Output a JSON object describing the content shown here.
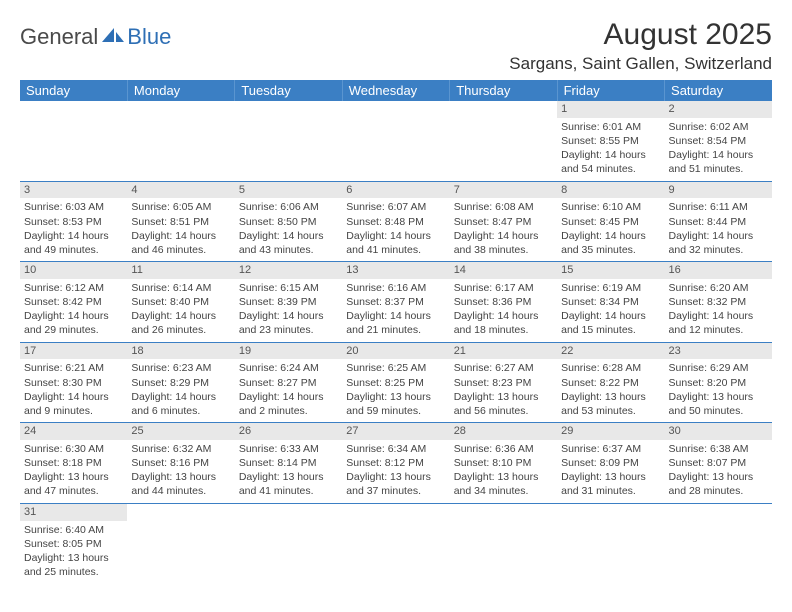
{
  "brand": {
    "part1": "General",
    "part2": "Blue"
  },
  "title": "August 2025",
  "location": "Sargans, Saint Gallen, Switzerland",
  "colors": {
    "header_bg": "#3b7fc4",
    "header_text": "#ffffff",
    "daynum_bg": "#e8e8e8",
    "border": "#3b7fc4",
    "logo_accent": "#2e6fb5"
  },
  "day_headers": [
    "Sunday",
    "Monday",
    "Tuesday",
    "Wednesday",
    "Thursday",
    "Friday",
    "Saturday"
  ],
  "weeks": [
    [
      {
        "empty": true
      },
      {
        "empty": true
      },
      {
        "empty": true
      },
      {
        "empty": true
      },
      {
        "empty": true
      },
      {
        "n": "1",
        "sunrise": "6:01 AM",
        "sunset": "8:55 PM",
        "daylight": "14 hours and 54 minutes."
      },
      {
        "n": "2",
        "sunrise": "6:02 AM",
        "sunset": "8:54 PM",
        "daylight": "14 hours and 51 minutes."
      }
    ],
    [
      {
        "n": "3",
        "sunrise": "6:03 AM",
        "sunset": "8:53 PM",
        "daylight": "14 hours and 49 minutes."
      },
      {
        "n": "4",
        "sunrise": "6:05 AM",
        "sunset": "8:51 PM",
        "daylight": "14 hours and 46 minutes."
      },
      {
        "n": "5",
        "sunrise": "6:06 AM",
        "sunset": "8:50 PM",
        "daylight": "14 hours and 43 minutes."
      },
      {
        "n": "6",
        "sunrise": "6:07 AM",
        "sunset": "8:48 PM",
        "daylight": "14 hours and 41 minutes."
      },
      {
        "n": "7",
        "sunrise": "6:08 AM",
        "sunset": "8:47 PM",
        "daylight": "14 hours and 38 minutes."
      },
      {
        "n": "8",
        "sunrise": "6:10 AM",
        "sunset": "8:45 PM",
        "daylight": "14 hours and 35 minutes."
      },
      {
        "n": "9",
        "sunrise": "6:11 AM",
        "sunset": "8:44 PM",
        "daylight": "14 hours and 32 minutes."
      }
    ],
    [
      {
        "n": "10",
        "sunrise": "6:12 AM",
        "sunset": "8:42 PM",
        "daylight": "14 hours and 29 minutes."
      },
      {
        "n": "11",
        "sunrise": "6:14 AM",
        "sunset": "8:40 PM",
        "daylight": "14 hours and 26 minutes."
      },
      {
        "n": "12",
        "sunrise": "6:15 AM",
        "sunset": "8:39 PM",
        "daylight": "14 hours and 23 minutes."
      },
      {
        "n": "13",
        "sunrise": "6:16 AM",
        "sunset": "8:37 PM",
        "daylight": "14 hours and 21 minutes."
      },
      {
        "n": "14",
        "sunrise": "6:17 AM",
        "sunset": "8:36 PM",
        "daylight": "14 hours and 18 minutes."
      },
      {
        "n": "15",
        "sunrise": "6:19 AM",
        "sunset": "8:34 PM",
        "daylight": "14 hours and 15 minutes."
      },
      {
        "n": "16",
        "sunrise": "6:20 AM",
        "sunset": "8:32 PM",
        "daylight": "14 hours and 12 minutes."
      }
    ],
    [
      {
        "n": "17",
        "sunrise": "6:21 AM",
        "sunset": "8:30 PM",
        "daylight": "14 hours and 9 minutes."
      },
      {
        "n": "18",
        "sunrise": "6:23 AM",
        "sunset": "8:29 PM",
        "daylight": "14 hours and 6 minutes."
      },
      {
        "n": "19",
        "sunrise": "6:24 AM",
        "sunset": "8:27 PM",
        "daylight": "14 hours and 2 minutes."
      },
      {
        "n": "20",
        "sunrise": "6:25 AM",
        "sunset": "8:25 PM",
        "daylight": "13 hours and 59 minutes."
      },
      {
        "n": "21",
        "sunrise": "6:27 AM",
        "sunset": "8:23 PM",
        "daylight": "13 hours and 56 minutes."
      },
      {
        "n": "22",
        "sunrise": "6:28 AM",
        "sunset": "8:22 PM",
        "daylight": "13 hours and 53 minutes."
      },
      {
        "n": "23",
        "sunrise": "6:29 AM",
        "sunset": "8:20 PM",
        "daylight": "13 hours and 50 minutes."
      }
    ],
    [
      {
        "n": "24",
        "sunrise": "6:30 AM",
        "sunset": "8:18 PM",
        "daylight": "13 hours and 47 minutes."
      },
      {
        "n": "25",
        "sunrise": "6:32 AM",
        "sunset": "8:16 PM",
        "daylight": "13 hours and 44 minutes."
      },
      {
        "n": "26",
        "sunrise": "6:33 AM",
        "sunset": "8:14 PM",
        "daylight": "13 hours and 41 minutes."
      },
      {
        "n": "27",
        "sunrise": "6:34 AM",
        "sunset": "8:12 PM",
        "daylight": "13 hours and 37 minutes."
      },
      {
        "n": "28",
        "sunrise": "6:36 AM",
        "sunset": "8:10 PM",
        "daylight": "13 hours and 34 minutes."
      },
      {
        "n": "29",
        "sunrise": "6:37 AM",
        "sunset": "8:09 PM",
        "daylight": "13 hours and 31 minutes."
      },
      {
        "n": "30",
        "sunrise": "6:38 AM",
        "sunset": "8:07 PM",
        "daylight": "13 hours and 28 minutes."
      }
    ],
    [
      {
        "n": "31",
        "sunrise": "6:40 AM",
        "sunset": "8:05 PM",
        "daylight": "13 hours and 25 minutes."
      },
      {
        "empty": true
      },
      {
        "empty": true
      },
      {
        "empty": true
      },
      {
        "empty": true
      },
      {
        "empty": true
      },
      {
        "empty": true
      }
    ]
  ],
  "labels": {
    "sunrise": "Sunrise:",
    "sunset": "Sunset:",
    "daylight": "Daylight:"
  }
}
